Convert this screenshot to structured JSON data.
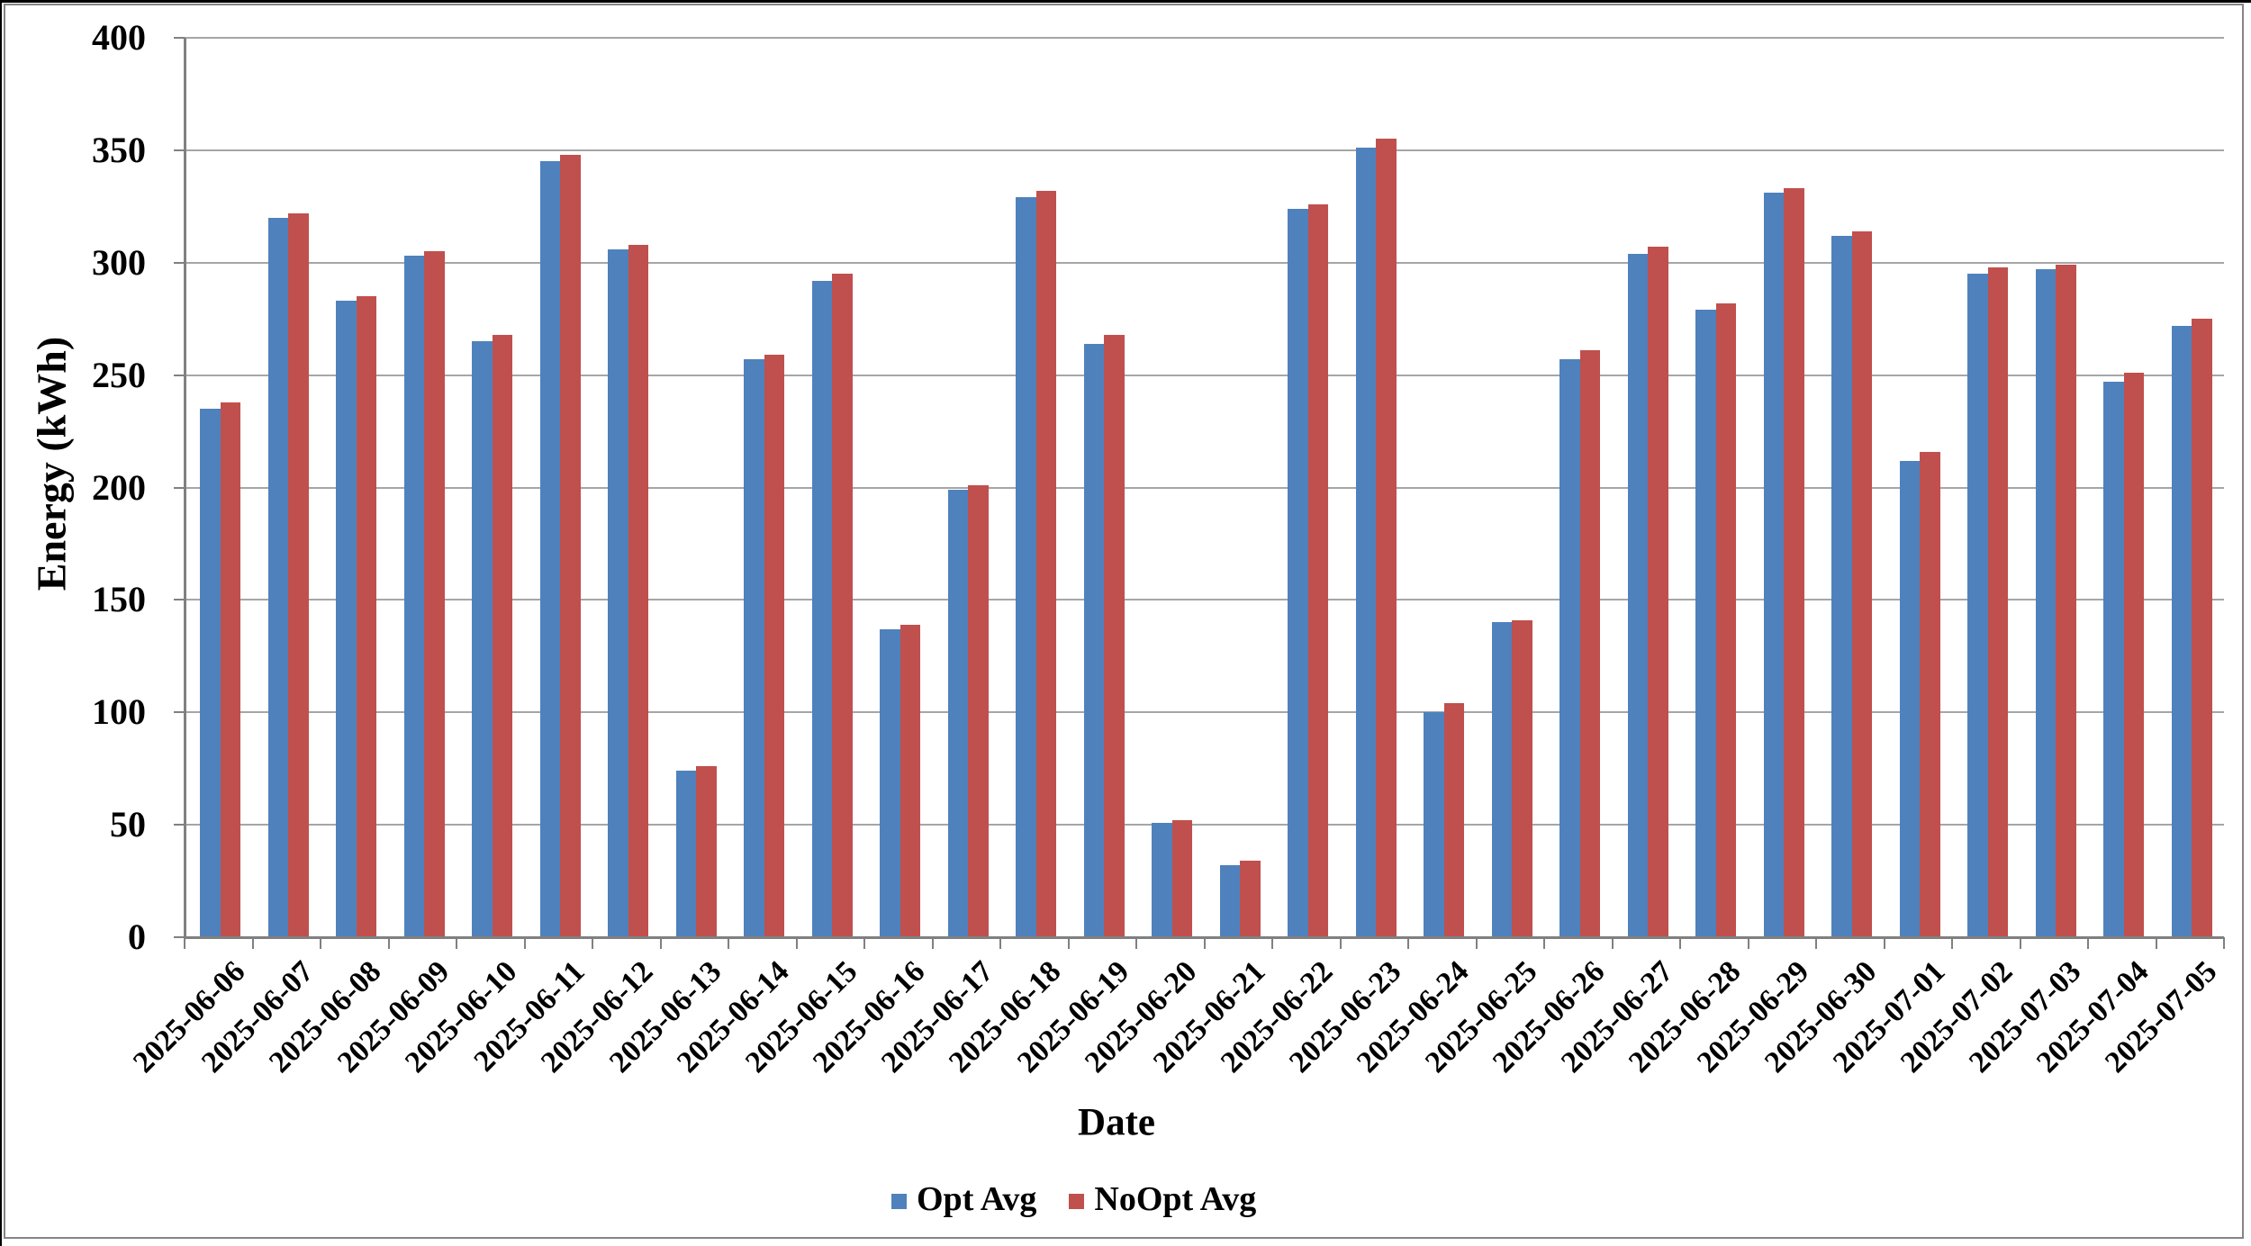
{
  "chart_data": {
    "type": "bar",
    "title": "",
    "xlabel": "Date",
    "ylabel": "Energy (kWh)",
    "ylim": [
      0,
      400
    ],
    "ytick_step": 50,
    "grid": true,
    "legend_position": "bottom-center",
    "categories": [
      "2025-06-06",
      "2025-06-07",
      "2025-06-08",
      "2025-06-09",
      "2025-06-10",
      "2025-06-11",
      "2025-06-12",
      "2025-06-13",
      "2025-06-14",
      "2025-06-15",
      "2025-06-16",
      "2025-06-17",
      "2025-06-18",
      "2025-06-19",
      "2025-06-20",
      "2025-06-21",
      "2025-06-22",
      "2025-06-23",
      "2025-06-24",
      "2025-06-25",
      "2025-06-26",
      "2025-06-27",
      "2025-06-28",
      "2025-06-29",
      "2025-06-30",
      "2025-07-01",
      "2025-07-02",
      "2025-07-03",
      "2025-07-04",
      "2025-07-05"
    ],
    "series": [
      {
        "name": "Opt Avg",
        "color": "#4F81BD",
        "values": [
          235,
          320,
          283,
          303,
          265,
          345,
          306,
          74,
          257,
          292,
          137,
          199,
          329,
          264,
          51,
          32,
          324,
          351,
          100,
          140,
          257,
          304,
          279,
          331,
          312,
          212,
          295,
          297,
          247,
          272
        ]
      },
      {
        "name": "NoOpt Avg",
        "color": "#C0504D",
        "values": [
          238,
          322,
          285,
          305,
          268,
          348,
          308,
          76,
          259,
          295,
          139,
          201,
          332,
          268,
          52,
          34,
          326,
          355,
          104,
          141,
          261,
          307,
          282,
          333,
          314,
          216,
          298,
          299,
          251,
          275
        ]
      }
    ]
  },
  "colors": {
    "gridline": "#A6A6A6",
    "axis": "#808080",
    "text": "#000000",
    "background": "#FFFFFF"
  }
}
